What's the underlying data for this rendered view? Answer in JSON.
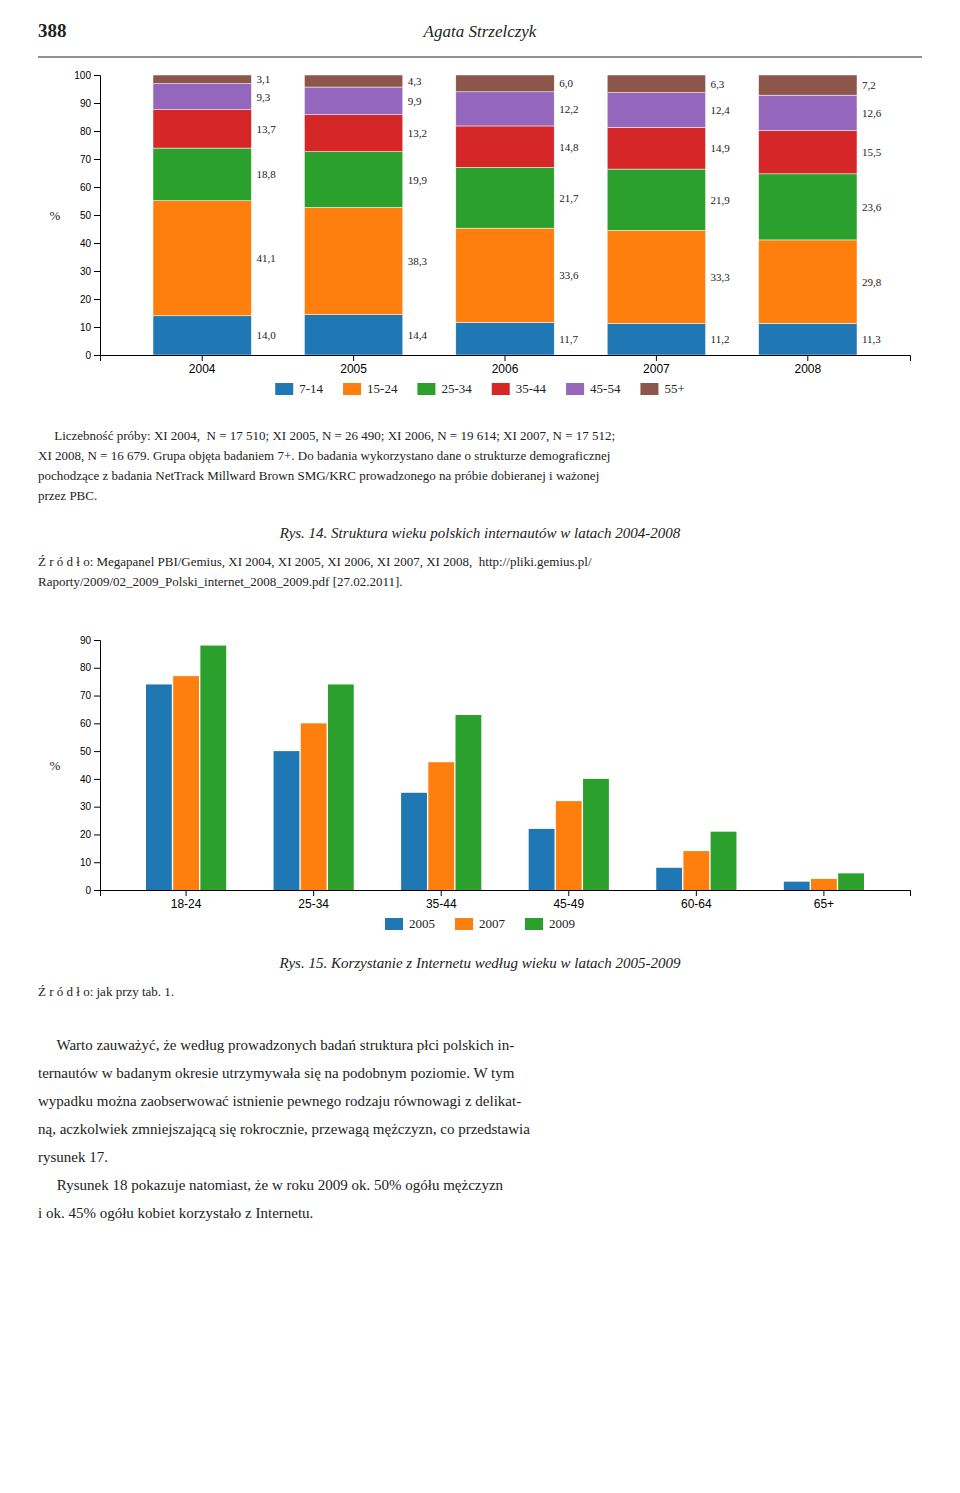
{
  "header_number": "388",
  "header_title": "Agata Strzelczyk",
  "chart_data": [
    {
      "type": "bar",
      "stacked": true,
      "title": "Rys. 14. Struktura wieku polskich internautów w latach 2004-2008",
      "y_label": "%",
      "categories": [
        "2004",
        "2005",
        "2006",
        "2007",
        "2008"
      ],
      "series": [
        {
          "name": "7-14",
          "values": [
            14.0,
            14.4,
            11.7,
            11.2,
            11.3
          ],
          "value_labels": [
            "14,0",
            "14,4",
            "11,7",
            "11,2",
            "11,3"
          ]
        },
        {
          "name": "15-24",
          "values": [
            41.1,
            38.3,
            33.6,
            33.3,
            29.8
          ],
          "value_labels": [
            "41,1",
            "38,3",
            "33,6",
            "33,3",
            "29,8"
          ]
        },
        {
          "name": "25-34",
          "values": [
            18.8,
            19.9,
            21.7,
            21.9,
            23.6
          ],
          "value_labels": [
            "18,8",
            "19,9",
            "21,7",
            "21,9",
            "23,6"
          ]
        },
        {
          "name": "35-44",
          "values": [
            13.7,
            13.2,
            14.8,
            14.9,
            15.5
          ],
          "value_labels": [
            "13,7",
            "13,2",
            "14,8",
            "14,9",
            "15,5"
          ]
        },
        {
          "name": "45-54",
          "values": [
            9.3,
            9.9,
            12.2,
            12.4,
            12.6
          ],
          "value_labels": [
            "9,3",
            "9,9",
            "12,2",
            "12,4",
            "12,6"
          ]
        },
        {
          "name": "55+",
          "values": [
            3.1,
            4.3,
            6.0,
            6.3,
            7.2
          ],
          "value_labels": [
            "3,1",
            "4,3",
            "6,0",
            "6,3",
            "7,2"
          ]
        }
      ],
      "ylim": [
        0,
        100
      ],
      "yticks": [
        0,
        10,
        20,
        30,
        40,
        50,
        60,
        70,
        80,
        90,
        100
      ],
      "data_labels": true,
      "legend": "bottom",
      "grid": false
    },
    {
      "type": "bar",
      "stacked": false,
      "title": "Rys. 15. Korzystanie z Internetu według wieku w latach 2005-2009",
      "y_label": "%",
      "categories": [
        "18-24",
        "25-34",
        "35-44",
        "45-49",
        "60-64",
        "65+"
      ],
      "series": [
        {
          "name": "2005",
          "values": [
            74,
            50,
            35,
            22,
            8,
            3
          ]
        },
        {
          "name": "2007",
          "values": [
            77,
            60,
            46,
            32,
            14,
            4
          ]
        },
        {
          "name": "2009",
          "values": [
            88,
            74,
            63,
            40,
            21,
            6
          ]
        }
      ],
      "ylim": [
        0,
        90
      ],
      "yticks": [
        0,
        10,
        20,
        30,
        40,
        50,
        60,
        70,
        80,
        90
      ],
      "data_labels": false,
      "legend": "bottom",
      "grid": false
    }
  ],
  "chart1_note": [
    "     Liczebność próby: XI 2004,  N = 17 510; XI 2005, N = 26 490; XI 2006, N = 19 614; XI 2007, N = 17 512;",
    "XI 2008, N = 16 679. Grupa objęta badaniem 7+. Do badania wykorzystano dane o strukturze demograficznej",
    "pochodzące z badania NetTrack Millward Brown SMG/KRC prowadzonego na próbie dobieranej i ważonej",
    "przez PBC."
  ],
  "chart1_source": [
    "Ź r ó d ł o: Megapanel PBI/Gemius, XI 2004, XI 2005, XI 2006, XI 2007, XI 2008,  http://pliki.gemius.pl/",
    "Raporty/2009/02_2009_Polski_internet_2008_2009.pdf [27.02.2011]."
  ],
  "chart2_source": "Ź r ó d ł o: jak przy tab. 1.",
  "body_text": [
    "     Warto zauważyć, że według prowadzonych badań struktura płci polskich in-",
    "ternautów w badanym okresie utrzymywała się na podobnym poziomie. W tym",
    "wypadku można zaobserwować istnienie pewnego rodzaju równowagi z delikat-",
    "ną, aczkolwiek zmniejszającą się rokrocznie, przewagą mężczyzn, co przedstawia",
    "rysunek 17.",
    "     Rysunek 18 pokazuje natomiast, że w roku 2009 ok. 50% ogółu mężczyzn",
    "i ok. 45% ogółu kobiet korzystało z Internetu."
  ]
}
